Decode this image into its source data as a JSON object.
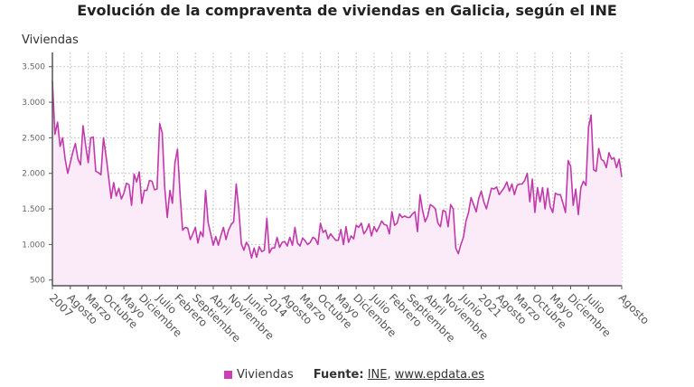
{
  "chart_data": {
    "type": "area",
    "title": "Evolución de la compraventa de viviendas en Galicia, según el INE",
    "ylabel": "Viviendas",
    "xlabel": "",
    "ylim": [
      420,
      3700
    ],
    "yticks": [
      500,
      1000,
      1500,
      2000,
      2500,
      3000,
      3500
    ],
    "ytick_labels": [
      "500",
      "1.000",
      "1.500",
      "2.000",
      "2.500",
      "3.000",
      "3.500"
    ],
    "grid": true,
    "legend_position": "bottom",
    "x_range": [
      "2007-01",
      "2025-08"
    ],
    "x_ticks": [
      {
        "index": 0,
        "label": "2007"
      },
      {
        "index": 7,
        "label": "Agosto"
      },
      {
        "index": 14,
        "label": "Marzo"
      },
      {
        "index": 21,
        "label": "Octubre"
      },
      {
        "index": 28,
        "label": "Mayo"
      },
      {
        "index": 35,
        "label": "Diciembre"
      },
      {
        "index": 42,
        "label": "Julio"
      },
      {
        "index": 49,
        "label": "Febrero"
      },
      {
        "index": 56,
        "label": "Septiembre"
      },
      {
        "index": 63,
        "label": "Abril"
      },
      {
        "index": 70,
        "label": "Noviembre"
      },
      {
        "index": 77,
        "label": "Junio"
      },
      {
        "index": 84,
        "label": "2014"
      },
      {
        "index": 91,
        "label": "Agosto"
      },
      {
        "index": 98,
        "label": "Marzo"
      },
      {
        "index": 105,
        "label": "Octubre"
      },
      {
        "index": 112,
        "label": "Mayo"
      },
      {
        "index": 119,
        "label": "Diciembre"
      },
      {
        "index": 126,
        "label": "Julio"
      },
      {
        "index": 133,
        "label": "Febrero"
      },
      {
        "index": 140,
        "label": "Septiembre"
      },
      {
        "index": 147,
        "label": "Abril"
      },
      {
        "index": 154,
        "label": "Noviembre"
      },
      {
        "index": 161,
        "label": "Junio"
      },
      {
        "index": 168,
        "label": "2021"
      },
      {
        "index": 175,
        "label": "Agosto"
      },
      {
        "index": 182,
        "label": "Marzo"
      },
      {
        "index": 189,
        "label": "Octubre"
      },
      {
        "index": 196,
        "label": "Mayo"
      },
      {
        "index": 203,
        "label": "Diciembre"
      },
      {
        "index": 210,
        "label": "Julio"
      },
      {
        "index": 223,
        "label": "Agosto"
      }
    ],
    "series": [
      {
        "name": "Viviendas",
        "color": "#c03aab",
        "fill": "#fbeaf7",
        "values": [
          3300,
          2550,
          2720,
          2380,
          2500,
          2200,
          2000,
          2150,
          2300,
          2420,
          2200,
          2120,
          2670,
          2400,
          2150,
          2500,
          2510,
          2030,
          2010,
          1980,
          2500,
          2250,
          1950,
          1650,
          1870,
          1680,
          1790,
          1640,
          1720,
          1860,
          1840,
          1550,
          1990,
          1880,
          2020,
          1580,
          1760,
          1760,
          1900,
          1890,
          1770,
          1780,
          2700,
          2570,
          1800,
          1380,
          1760,
          1580,
          2150,
          2340,
          1700,
          1200,
          1240,
          1230,
          1070,
          1150,
          1240,
          1020,
          1180,
          1110,
          1760,
          1310,
          1150,
          990,
          1110,
          990,
          1130,
          1240,
          1070,
          1200,
          1280,
          1320,
          1850,
          1500,
          1010,
          920,
          1030,
          970,
          810,
          950,
          820,
          970,
          900,
          920,
          1370,
          880,
          950,
          950,
          1100,
          960,
          1030,
          1040,
          980,
          1100,
          990,
          1240,
          1020,
          980,
          1090,
          1050,
          1000,
          1030,
          1100,
          1080,
          1000,
          1300,
          1170,
          1200,
          1080,
          1150,
          1100,
          1060,
          1060,
          1210,
          1000,
          1250,
          1030,
          1120,
          1080,
          1270,
          1240,
          1300,
          1150,
          1200,
          1290,
          1120,
          1250,
          1180,
          1250,
          1330,
          1280,
          1270,
          1150,
          1460,
          1270,
          1300,
          1430,
          1380,
          1400,
          1380,
          1380,
          1430,
          1460,
          1180,
          1700,
          1480,
          1320,
          1400,
          1560,
          1540,
          1500,
          1300,
          1250,
          1480,
          1460,
          1250,
          1560,
          1500,
          950,
          870,
          1000,
          1100,
          1330,
          1450,
          1660,
          1560,
          1460,
          1650,
          1750,
          1600,
          1500,
          1650,
          1790,
          1780,
          1810,
          1700,
          1750,
          1800,
          1880,
          1750,
          1850,
          1700,
          1830,
          1850,
          1850,
          1900,
          2000,
          1600,
          1920,
          1450,
          1800,
          1600,
          1800,
          1500,
          1790,
          1530,
          1450,
          1720,
          1700,
          1700,
          1580,
          1450,
          2180,
          2100,
          1550,
          1780,
          1420,
          1800,
          1890,
          1830,
          2650,
          2820,
          2050,
          2030,
          2350,
          2200,
          2170,
          2080,
          2290,
          2200,
          2220,
          2080,
          2200,
          1950
        ]
      }
    ]
  },
  "legend": {
    "series_label": "Viviendas"
  },
  "source": {
    "label": "Fuente",
    "separator": ":",
    "ine": "INE",
    "comma": ",",
    "site": "www.epdata.es"
  }
}
